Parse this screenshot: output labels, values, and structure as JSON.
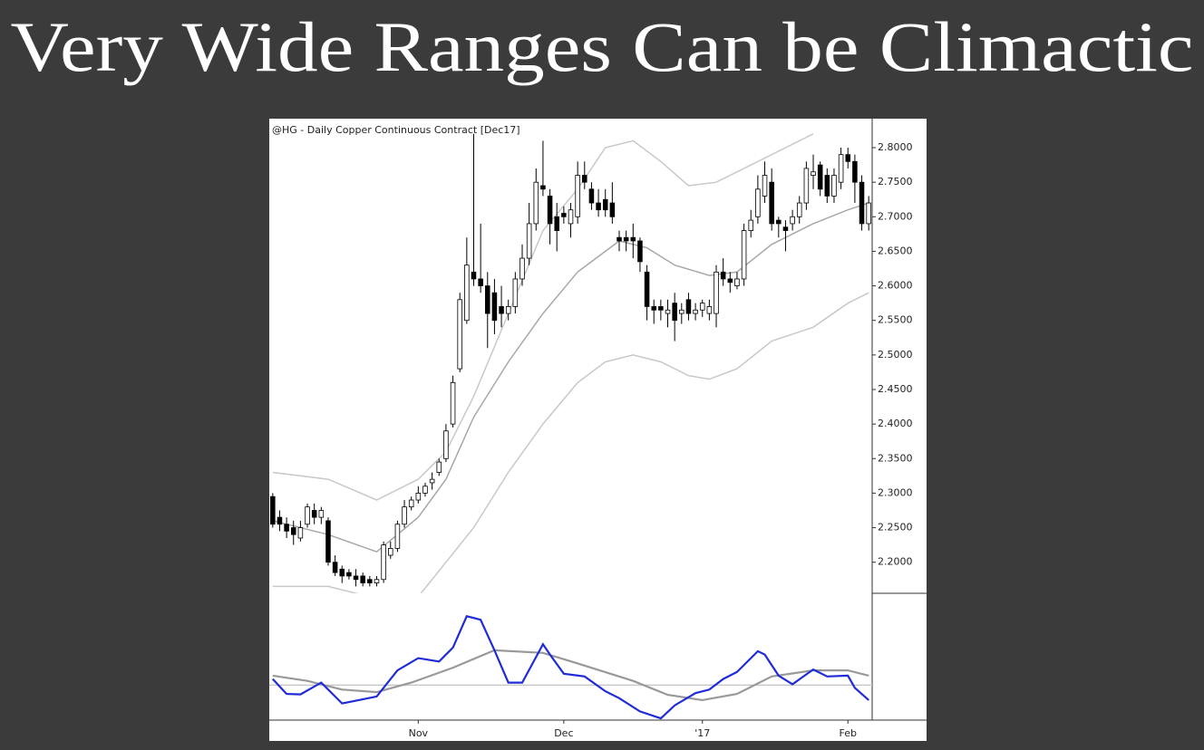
{
  "title": "Very Wide Ranges Can be Climactic",
  "chart_data": {
    "type": "candlestick",
    "subtitle": "@HG - Daily  Copper Continuous Contract [Dec17]",
    "categories": [
      null,
      null,
      null,
      null,
      null,
      null,
      null,
      null,
      null,
      null,
      null,
      null,
      null,
      null,
      null,
      null,
      null,
      null,
      null,
      null,
      null,
      "Nov",
      null,
      null,
      null,
      null,
      null,
      null,
      null,
      null,
      null,
      null,
      null,
      null,
      null,
      null,
      null,
      null,
      null,
      null,
      null,
      null,
      "Dec",
      null,
      null,
      null,
      null,
      null,
      null,
      null,
      null,
      null,
      null,
      null,
      null,
      null,
      null,
      null,
      null,
      null,
      null,
      null,
      "'17",
      null,
      null,
      null,
      null,
      null,
      null,
      null,
      null,
      null,
      null,
      null,
      null,
      null,
      null,
      null,
      null,
      null,
      null,
      null,
      null,
      "Feb",
      null,
      null,
      null
    ],
    "open": [
      2.295,
      2.265,
      2.255,
      2.25,
      2.235,
      2.255,
      2.275,
      2.265,
      2.26,
      2.2,
      2.19,
      2.185,
      2.18,
      2.18,
      2.175,
      2.17,
      2.175,
      2.21,
      2.22,
      2.255,
      2.28,
      2.29,
      2.3,
      2.315,
      2.33,
      2.35,
      2.4,
      2.48,
      2.55,
      2.62,
      2.61,
      2.6,
      2.59,
      2.57,
      2.56,
      2.57,
      2.61,
      2.64,
      2.69,
      2.745,
      2.73,
      2.7,
      2.705,
      2.69,
      2.7,
      2.76,
      2.74,
      2.72,
      2.725,
      2.72,
      2.67,
      2.67,
      2.67,
      2.665,
      2.62,
      2.57,
      2.57,
      2.56,
      2.575,
      2.56,
      2.58,
      2.56,
      2.565,
      2.56,
      2.56,
      2.62,
      2.61,
      2.6,
      2.61,
      2.68,
      2.7,
      2.73,
      2.75,
      2.695,
      2.685,
      2.69,
      2.7,
      2.72,
      2.76,
      2.775,
      2.76,
      2.73,
      2.75,
      2.79,
      2.78,
      2.75,
      2.69
    ],
    "high": [
      2.3,
      2.275,
      2.265,
      2.26,
      2.26,
      2.285,
      2.285,
      2.28,
      2.265,
      2.21,
      2.195,
      2.19,
      2.19,
      2.185,
      2.18,
      2.18,
      2.23,
      2.23,
      2.26,
      2.29,
      2.295,
      2.31,
      2.315,
      2.33,
      2.35,
      2.4,
      2.47,
      2.59,
      2.67,
      2.82,
      2.69,
      2.62,
      2.61,
      2.6,
      2.58,
      2.62,
      2.66,
      2.72,
      2.77,
      2.81,
      2.74,
      2.72,
      2.715,
      2.72,
      2.78,
      2.78,
      2.75,
      2.74,
      2.74,
      2.75,
      2.68,
      2.68,
      2.69,
      2.67,
      2.63,
      2.58,
      2.58,
      2.58,
      2.59,
      2.575,
      2.59,
      2.575,
      2.58,
      2.58,
      2.63,
      2.64,
      2.62,
      2.62,
      2.69,
      2.71,
      2.76,
      2.78,
      2.77,
      2.7,
      2.695,
      2.71,
      2.73,
      2.78,
      2.79,
      2.78,
      2.77,
      2.77,
      2.8,
      2.8,
      2.79,
      2.76,
      2.73
    ],
    "low": [
      2.25,
      2.245,
      2.235,
      2.225,
      2.23,
      2.25,
      2.255,
      2.255,
      2.195,
      2.18,
      2.17,
      2.175,
      2.165,
      2.165,
      2.165,
      2.165,
      2.17,
      2.205,
      2.215,
      2.25,
      2.275,
      2.285,
      2.295,
      2.305,
      2.325,
      2.345,
      2.395,
      2.475,
      2.545,
      2.6,
      2.59,
      2.51,
      2.53,
      2.54,
      2.55,
      2.56,
      2.6,
      2.63,
      2.68,
      2.73,
      2.66,
      2.65,
      2.69,
      2.67,
      2.69,
      2.74,
      2.71,
      2.7,
      2.7,
      2.69,
      2.65,
      2.65,
      2.64,
      2.62,
      2.55,
      2.545,
      2.55,
      2.54,
      2.52,
      2.545,
      2.55,
      2.55,
      2.555,
      2.55,
      2.54,
      2.6,
      2.59,
      2.595,
      2.6,
      2.67,
      2.69,
      2.72,
      2.68,
      2.67,
      2.65,
      2.68,
      2.69,
      2.71,
      2.74,
      2.73,
      2.72,
      2.72,
      2.74,
      2.77,
      2.72,
      2.68,
      2.68
    ],
    "close": [
      2.255,
      2.255,
      2.245,
      2.24,
      2.25,
      2.28,
      2.265,
      2.275,
      2.2,
      2.185,
      2.18,
      2.18,
      2.175,
      2.17,
      2.17,
      2.175,
      2.225,
      2.22,
      2.255,
      2.28,
      2.29,
      2.3,
      2.31,
      2.32,
      2.345,
      2.39,
      2.46,
      2.58,
      2.63,
      2.61,
      2.6,
      2.56,
      2.55,
      2.56,
      2.57,
      2.61,
      2.64,
      2.69,
      2.75,
      2.74,
      2.69,
      2.68,
      2.7,
      2.71,
      2.76,
      2.75,
      2.72,
      2.71,
      2.71,
      2.7,
      2.665,
      2.665,
      2.665,
      2.635,
      2.57,
      2.565,
      2.565,
      2.565,
      2.55,
      2.565,
      2.56,
      2.565,
      2.575,
      2.57,
      2.62,
      2.61,
      2.605,
      2.61,
      2.68,
      2.695,
      2.74,
      2.76,
      2.69,
      2.69,
      2.68,
      2.7,
      2.72,
      2.77,
      2.765,
      2.74,
      2.73,
      2.76,
      2.79,
      2.78,
      2.75,
      2.69,
      2.72
    ],
    "up_color": "#ffffff",
    "down_color": "#000000",
    "overlays": [
      {
        "color": "#c8c8c8",
        "x": [
          0,
          8,
          15,
          21,
          25,
          29,
          34,
          39,
          44,
          48,
          52,
          56,
          60,
          64,
          68,
          72,
          76,
          78
        ],
        "values": [
          2.33,
          2.32,
          2.29,
          2.32,
          2.36,
          2.44,
          2.56,
          2.68,
          2.74,
          2.8,
          2.81,
          2.78,
          2.745,
          2.75,
          2.77,
          2.79,
          2.81,
          2.82
        ]
      },
      {
        "color": "#a8a8a8",
        "x": [
          0,
          8,
          15,
          21,
          25,
          29,
          34,
          39,
          44,
          50,
          54,
          58,
          63,
          67,
          72,
          78,
          83,
          86
        ],
        "values": [
          2.26,
          2.24,
          2.215,
          2.265,
          2.32,
          2.41,
          2.49,
          2.56,
          2.62,
          2.665,
          2.655,
          2.63,
          2.615,
          2.62,
          2.66,
          2.69,
          2.71,
          2.72
        ]
      },
      {
        "color": "#c8c8c8",
        "x": [
          0,
          8,
          14,
          21,
          25,
          29,
          34,
          39,
          44,
          48,
          52,
          56,
          60,
          63,
          67,
          72,
          78,
          83,
          86
        ],
        "values": [
          2.165,
          2.165,
          2.15,
          2.15,
          2.2,
          2.25,
          2.33,
          2.4,
          2.46,
          2.49,
          2.5,
          2.49,
          2.47,
          2.465,
          2.48,
          2.52,
          2.54,
          2.575,
          2.59
        ]
      }
    ],
    "ylim": [
      2.155,
      2.842
    ],
    "yticks": [
      {
        "value": 2.2,
        "label": "2.2000"
      },
      {
        "value": 2.25,
        "label": "2.2500"
      },
      {
        "value": 2.3,
        "label": "2.3000"
      },
      {
        "value": 2.35,
        "label": "2.3500"
      },
      {
        "value": 2.4,
        "label": "2.4000"
      },
      {
        "value": 2.45,
        "label": "2.4500"
      },
      {
        "value": 2.5,
        "label": "2.5000"
      },
      {
        "value": 2.55,
        "label": "2.5500"
      },
      {
        "value": 2.6,
        "label": "2.6000"
      },
      {
        "value": 2.65,
        "label": "2.6500"
      },
      {
        "value": 2.7,
        "label": "2.7000"
      },
      {
        "value": 2.75,
        "label": "2.7500"
      },
      {
        "value": 2.8,
        "label": "2.8000"
      }
    ],
    "indicator": {
      "ylim": [
        0,
        100
      ],
      "reference": 28.6,
      "reference_color": "#c8c8c8",
      "series": [
        {
          "color": "#1f2bd6",
          "x": [
            0,
            2,
            4,
            7,
            10,
            15,
            18,
            21,
            24,
            26,
            28,
            30,
            32,
            34,
            36,
            39,
            40,
            42,
            45,
            48,
            50,
            53,
            56,
            58,
            61,
            63,
            65,
            67,
            70,
            71,
            73,
            75,
            78,
            80,
            83,
            84,
            86
          ],
          "values": [
            33.6,
            21.4,
            21,
            30.7,
            13.6,
            19.3,
            40.7,
            50.7,
            47.9,
            59.3,
            85,
            82.1,
            57.1,
            30.7,
            30.7,
            62.1,
            53.6,
            37.9,
            35.7,
            23.6,
            17.9,
            7.1,
            1.4,
            12.1,
            22.1,
            25,
            33.6,
            39.3,
            56.4,
            53.6,
            36.4,
            29.3,
            41.4,
            35.7,
            36.4,
            26.4,
            16.4
          ]
        },
        {
          "color": "#999999",
          "x": [
            0,
            5,
            10,
            15,
            20,
            26,
            32,
            39,
            44,
            52,
            57,
            62,
            67,
            72,
            78,
            83,
            86
          ],
          "values": [
            36.4,
            32.1,
            25,
            22.9,
            30.7,
            42.9,
            57.1,
            55,
            46.4,
            32.1,
            20.7,
            16.4,
            21.4,
            35.7,
            40.7,
            40.7,
            36.4
          ]
        }
      ]
    }
  }
}
